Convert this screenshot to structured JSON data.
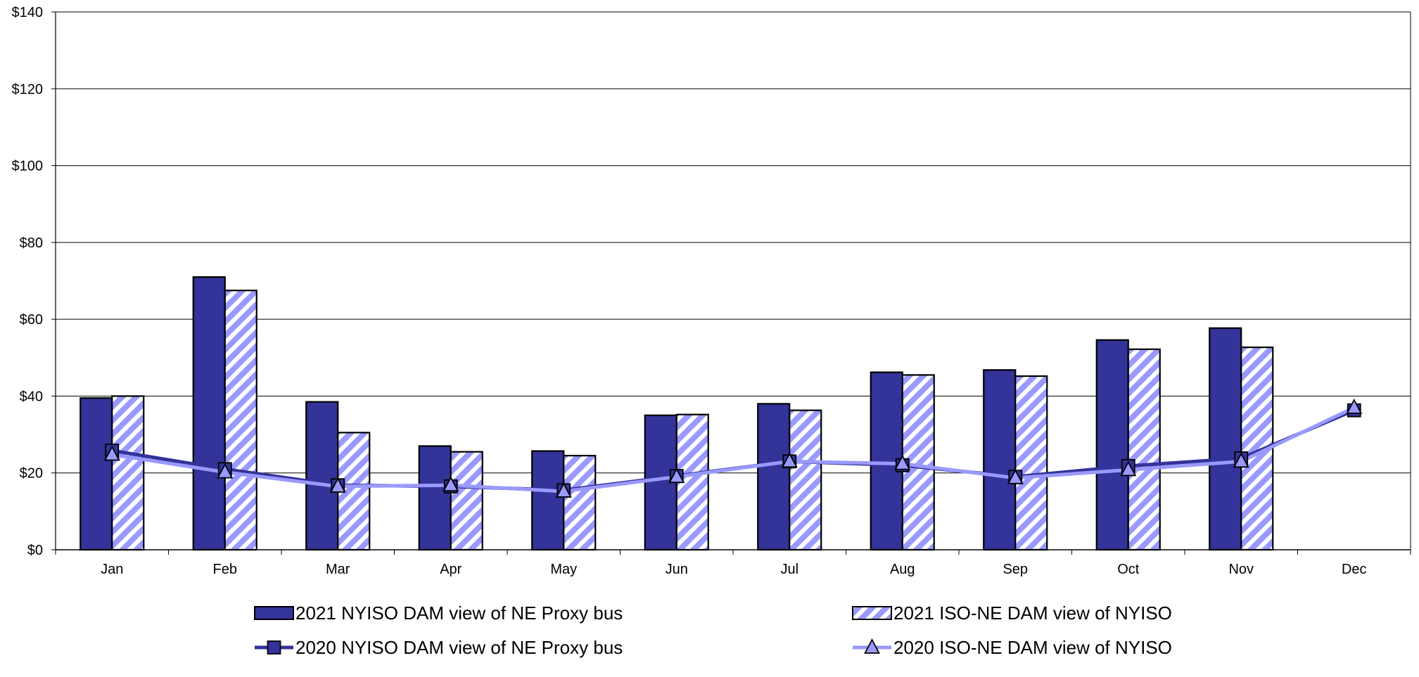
{
  "chart_data": {
    "type": "bar",
    "title": "",
    "xlabel": "",
    "ylabel": "",
    "categories": [
      "Jan",
      "Feb",
      "Mar",
      "Apr",
      "May",
      "Jun",
      "Jul",
      "Aug",
      "Sep",
      "Oct",
      "Nov",
      "Dec"
    ],
    "ylim": [
      0,
      140
    ],
    "yticks": [
      0,
      20,
      40,
      60,
      80,
      100,
      120,
      140
    ],
    "ytick_labels": [
      "$0",
      "$20",
      "$40",
      "$60",
      "$80",
      "$100",
      "$120",
      "$140"
    ],
    "grid": true,
    "legend_position": "bottom",
    "series": [
      {
        "name": "2021 NYISO DAM view of NE Proxy bus",
        "kind": "bar",
        "style": "solid",
        "color": "#333399",
        "values": [
          39.5,
          71,
          38.5,
          27,
          25.7,
          35,
          38,
          46.2,
          46.8,
          54.6,
          57.7,
          null
        ]
      },
      {
        "name": "2021 ISO-NE DAM view of NYISO",
        "kind": "bar",
        "style": "hatched",
        "color": "#9999FF",
        "values": [
          40,
          67.5,
          30.5,
          25.5,
          24.5,
          35.2,
          36.3,
          45.5,
          45.2,
          52.2,
          52.7,
          null
        ]
      },
      {
        "name": "2020 NYISO DAM view of NE Proxy bus",
        "kind": "line",
        "marker": "square",
        "color": "#333399",
        "values": [
          25.8,
          21,
          16.8,
          16.5,
          15.5,
          19.2,
          23,
          22,
          19,
          21.8,
          23.8,
          36.3
        ]
      },
      {
        "name": "2020 ISO-NE DAM view of NYISO",
        "kind": "line",
        "marker": "triangle",
        "color": "#9999FF",
        "values": [
          24.8,
          20.2,
          16.5,
          16.8,
          15.2,
          19,
          23,
          22.4,
          18.7,
          20.8,
          23,
          37
        ]
      }
    ]
  }
}
